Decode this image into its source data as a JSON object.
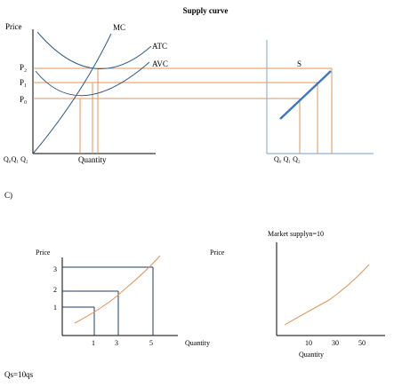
{
  "top": {
    "title": "Supply curve",
    "left_panel": {
      "y_axis_label": "Price",
      "x_axis_label": "Quantity",
      "curve_labels": {
        "mc": "MC",
        "atc": "ATC",
        "avc": "AVC"
      },
      "price_labels": [
        "P₂",
        "P₁",
        "P₀"
      ],
      "quantity_labels": "Q₀Q₁ Q₂"
    },
    "right_panel": {
      "curve_label": "S",
      "quantity_labels": "Q₀  Q₁ Q₂"
    }
  },
  "section_label": "C)",
  "bottom": {
    "left_panel": {
      "y_axis_label": "Price",
      "x_axis_label": "Quantity",
      "y_ticks": [
        "3",
        "2",
        "1"
      ],
      "x_ticks": [
        "1",
        "3",
        "5"
      ]
    },
    "right_panel": {
      "title": "Market supplyn=10",
      "y_axis_label": "Price",
      "x_axis_label": "Quantity",
      "x_ticks": [
        "10",
        "30",
        "50"
      ]
    },
    "formula": "Qs=10qs"
  },
  "colors": {
    "axis": "#000000",
    "cost_curves": "#2f5b8c",
    "guide_lines": "#e0955a",
    "supply_axes": "#8eb4d8",
    "grid_lines": "#1f3a64"
  }
}
